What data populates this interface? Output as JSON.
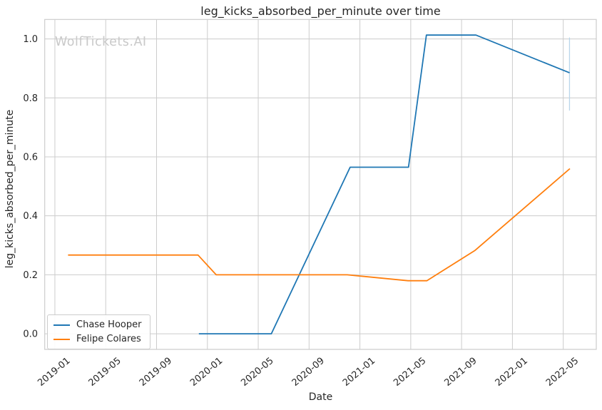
{
  "page": {
    "background": "#ffffff"
  },
  "watermark": {
    "text": "WolfTickets.AI",
    "color": "#c9c9c9"
  },
  "colors": {
    "grid": "#cccccc",
    "spine": "#cccccc",
    "tick_text": "#262626",
    "series_blue": "#1f77b4",
    "series_orange": "#ff7f0e",
    "error_bar": "#b9d6ea"
  },
  "chart_data": {
    "type": "line",
    "title": "leg_kicks_absorbed_per_minute over time",
    "xlabel": "Date",
    "ylabel": "leg_kicks_absorbed_per_minute",
    "grid": true,
    "legend_position": "lower-left",
    "x_ticks": [
      "2019-01",
      "2019-05",
      "2019-09",
      "2020-01",
      "2020-05",
      "2020-09",
      "2021-01",
      "2021-05",
      "2021-09",
      "2022-01",
      "2022-05"
    ],
    "y_ticks": [
      "0.0",
      "0.2",
      "0.4",
      "0.6",
      "0.8",
      "1.0"
    ],
    "xlim_months_since_2019_01": [
      -0.8,
      42.6
    ],
    "ylim": [
      -0.053,
      1.066
    ],
    "series": [
      {
        "name": "Chase Hooper",
        "color": "#1f77b4",
        "points": [
          [
            "2019-12-11",
            0.0
          ],
          [
            "2020-06-02",
            0.0
          ],
          [
            "2020-12-08",
            0.565
          ],
          [
            "2021-04-26",
            0.565
          ],
          [
            "2021-06-08",
            1.013
          ],
          [
            "2021-10-05",
            1.013
          ],
          [
            "2022-05-16",
            0.885
          ]
        ]
      },
      {
        "name": "Felipe Colares",
        "color": "#ff7f0e",
        "points": [
          [
            "2019-02-02",
            0.267
          ],
          [
            "2019-12-09",
            0.267
          ],
          [
            "2020-01-22",
            0.2
          ],
          [
            "2020-12-01",
            0.2
          ],
          [
            "2021-04-25",
            0.18
          ],
          [
            "2021-06-09",
            0.18
          ],
          [
            "2021-10-03",
            0.283
          ],
          [
            "2022-05-17",
            0.56
          ]
        ]
      }
    ],
    "error_bar": {
      "series": "Chase Hooper",
      "x": "2022-05-16",
      "y_low": 0.757,
      "y_high": 1.005
    }
  }
}
